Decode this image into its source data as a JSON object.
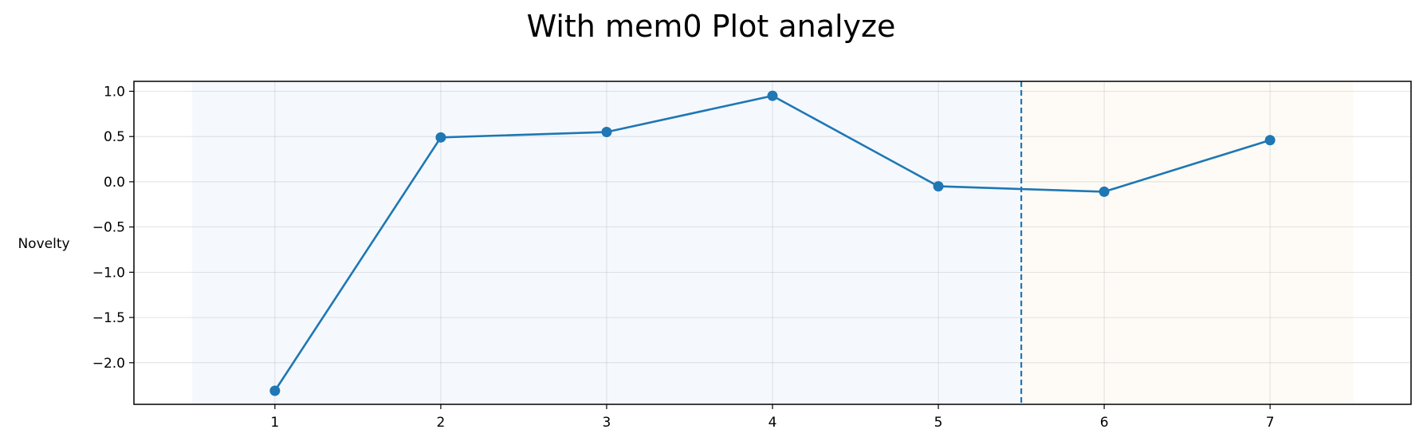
{
  "chart_data": {
    "type": "line",
    "title": "With mem0 Plot analyze",
    "xlabel": "",
    "ylabel": "Novelty",
    "x": [
      1,
      2,
      3,
      4,
      5,
      6,
      7
    ],
    "series": [
      {
        "values": [
          -2.31,
          0.49,
          0.55,
          0.95,
          -0.05,
          -0.11,
          0.46
        ],
        "color": "#1f77b4"
      }
    ],
    "xlim": [
      0.15,
      7.85
    ],
    "ylim": [
      -2.46,
      1.11
    ],
    "xticks": [
      1,
      2,
      3,
      4,
      5,
      6,
      7
    ],
    "yticks": [
      1.0,
      0.5,
      0.0,
      -0.5,
      -1.0,
      -1.5,
      -2.0
    ],
    "ytick_labels": [
      "1.0",
      "0.5",
      "0.0",
      "−0.5",
      "−1.0",
      "−1.5",
      "−2.0"
    ],
    "grid": true,
    "shaded_regions": [
      {
        "x_range": [
          0.5,
          5.5
        ],
        "color": "#dbe8f7"
      },
      {
        "x_range": [
          5.5,
          7.5
        ],
        "color": "#fdefdd"
      }
    ],
    "vertical_line": {
      "x": 5.5,
      "style": "dashed",
      "color": "#1f77b4"
    }
  }
}
